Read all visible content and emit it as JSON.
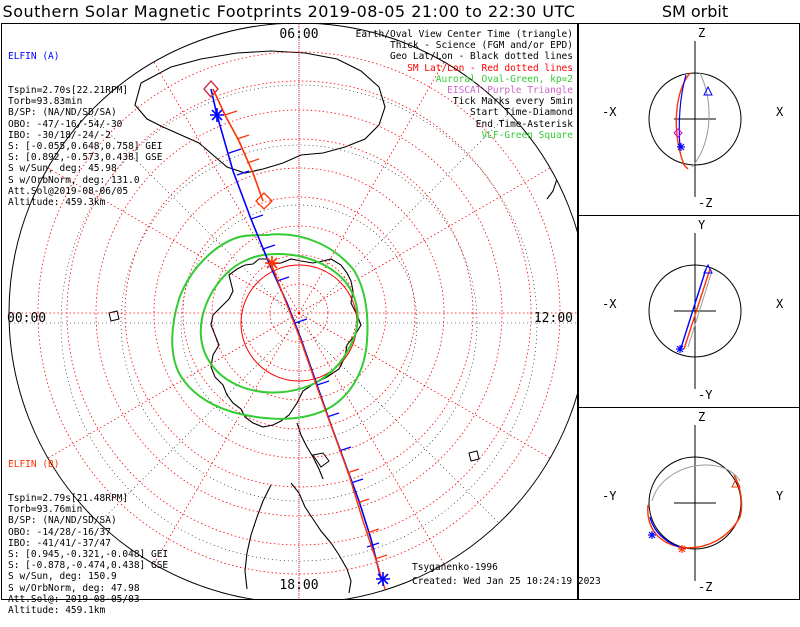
{
  "title": "Southern Solar Magnetic Footprints 2019-08-05 21:00 to 22:30 UTC",
  "sm_title": "SM orbit",
  "map": {
    "time_labels": {
      "top": "06:00",
      "left": "00:00",
      "right": "12:00",
      "bottom": "18:00"
    },
    "legend": [
      {
        "text": "Earth/Oval View Center Time (triangle)",
        "color": "#000000"
      },
      {
        "text": "Thick - Science (FGM and/or EPD)",
        "color": "#000000"
      },
      {
        "text": "Geo Lat/Lon - Black dotted lines",
        "color": "#000000"
      },
      {
        "text": "SM Lat/Lon - Red dotted lines",
        "color": "#ff0000"
      },
      {
        "text": "Auroral Oval-Green, kp=2",
        "color": "#33cc33"
      },
      {
        "text": "EISCAT-Purple Triangle",
        "color": "#cc66cc"
      },
      {
        "text": "Tick Marks every 5min",
        "color": "#000000"
      },
      {
        "text": "Start Time-Diamond",
        "color": "#000000"
      },
      {
        "text": "End Time-Asterisk",
        "color": "#000000"
      },
      {
        "text": "VLF-Green Square",
        "color": "#33cc33"
      }
    ],
    "elfin_a": {
      "name": "ELFIN (A)",
      "color": "#0000ff",
      "lines": [
        "Tspin=2.70s[22.21RPM]",
        "Torb=93.83min",
        "B/SP: (NA/ND/SD/SA)",
        "OBO: -47/-16/-54/-30",
        "IBO: -30/18/-24/-2",
        "S: [-0.055,0.648,0.758] GEI",
        "S: [0.892,-0.573,0.438] GSE",
        "S w/Sun, deg: 45.98",
        "S w/OrbNorm, deg: 131.0",
        "Att.Sol@2019-08-06/05",
        "Altitude: 459.3km"
      ]
    },
    "elfin_b": {
      "name": "ELFIN (B)",
      "color": "#ff3300",
      "lines": [
        "Tspin=2.79s[21.48RPM]",
        "Torb=93.76min",
        "B/SP: (NA/ND/SD/SA)",
        "OBO: -14/28/-16/37",
        "IBO: -41/41/-37/47",
        "S: [0.945,-0.321,-0.048] GEI",
        "S: [-0.878,-0.474,0.438] GSE",
        "S w/Sun, deg: 150.9",
        "S w/OrbNorm, deg: 47.98",
        "Att.Sol@: 2019-08-05/03",
        "Altitude: 459.1km"
      ]
    },
    "credit_model": "Tsyganenko-1996",
    "credit_created": "Created: Wed Jan 25 10:24:19 2023"
  },
  "sm_panels": [
    {
      "top": "Z",
      "bottom": "-Z",
      "left": "-X",
      "right": "X"
    },
    {
      "top": "Y",
      "bottom": "-Y",
      "left": "-X",
      "right": "X"
    },
    {
      "top": "Z",
      "bottom": "-Z",
      "left": "-Y",
      "right": "Y"
    }
  ],
  "colors": {
    "elfin_a": "#0000ff",
    "elfin_b": "#ff3300",
    "oval": "#33cc33",
    "grid_sm": "#ff0000"
  }
}
